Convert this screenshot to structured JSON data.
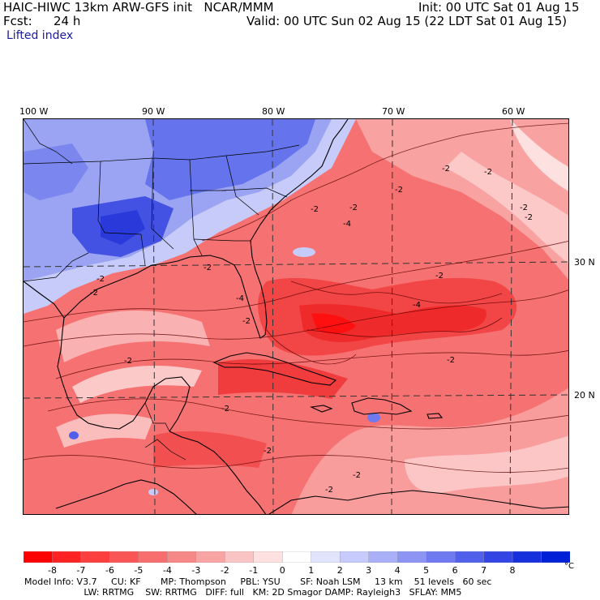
{
  "header": {
    "model_line": "HAIC-HIWC 13km ARW-GFS init   NCAR/MMM",
    "init_line": "Init: 00 UTC Sat 01 Aug 15",
    "fcst_label": "Fcst:",
    "fcst_value": "24 h",
    "valid_line": "Valid: 00 UTC Sun 02 Aug 15 (22 LDT Sat 01 Aug 15)",
    "field_name": "Lifted index"
  },
  "map": {
    "longitude_labels": [
      "100 W",
      "90 W",
      "80 W",
      "70 W",
      "60 W"
    ],
    "latitude_labels": [
      "30 N",
      "20 N"
    ],
    "contour_labels": [
      "-2",
      "-2",
      "-2",
      "-2",
      "-2",
      "-2",
      "-2",
      "-2",
      "-4",
      "-2",
      "-2",
      "-4",
      "-2",
      "-2",
      "-4",
      "-2",
      "-2",
      "-2",
      "-2",
      "-2",
      "-2"
    ],
    "colors": {
      "unstable_strong": "#ff1a1a",
      "unstable": "#f56a6a",
      "unstable_weak": "#fbbcbc",
      "neutral": "#ffffff",
      "stable_weak": "#c8cdfa",
      "stable": "#7f8cf0",
      "stable_strong": "#2a39d9"
    }
  },
  "colorbar": {
    "ticks": [
      "-8",
      "-7",
      "-6",
      "-5",
      "-4",
      "-3",
      "-2",
      "-1",
      "0",
      "1",
      "2",
      "3",
      "4",
      "5",
      "6",
      "7",
      "8"
    ],
    "unit": "°C",
    "colors": [
      "#ff0000",
      "#ff2222",
      "#fd3e3e",
      "#fb5656",
      "#f86e6e",
      "#f78888",
      "#f8a4a4",
      "#fbc4c4",
      "#fde0e0",
      "#ffffff",
      "#e2e4fd",
      "#c6cbfb",
      "#a9b0f8",
      "#8c95f4",
      "#6f7af0",
      "#5160eb",
      "#3345e4",
      "#1730dd",
      "#0020d8"
    ]
  },
  "footer": {
    "line1": "Model Info: V3.7     CU: KF       MP: Thompson     PBL: YSU       SF: Noah LSM     13 km    51 levels   60 sec",
    "line2": "                     LW: RRTMG    SW: RRTMG   DIFF: full   KM: 2D Smagor DAMP: Rayleigh3   SFLAY: MM5"
  }
}
